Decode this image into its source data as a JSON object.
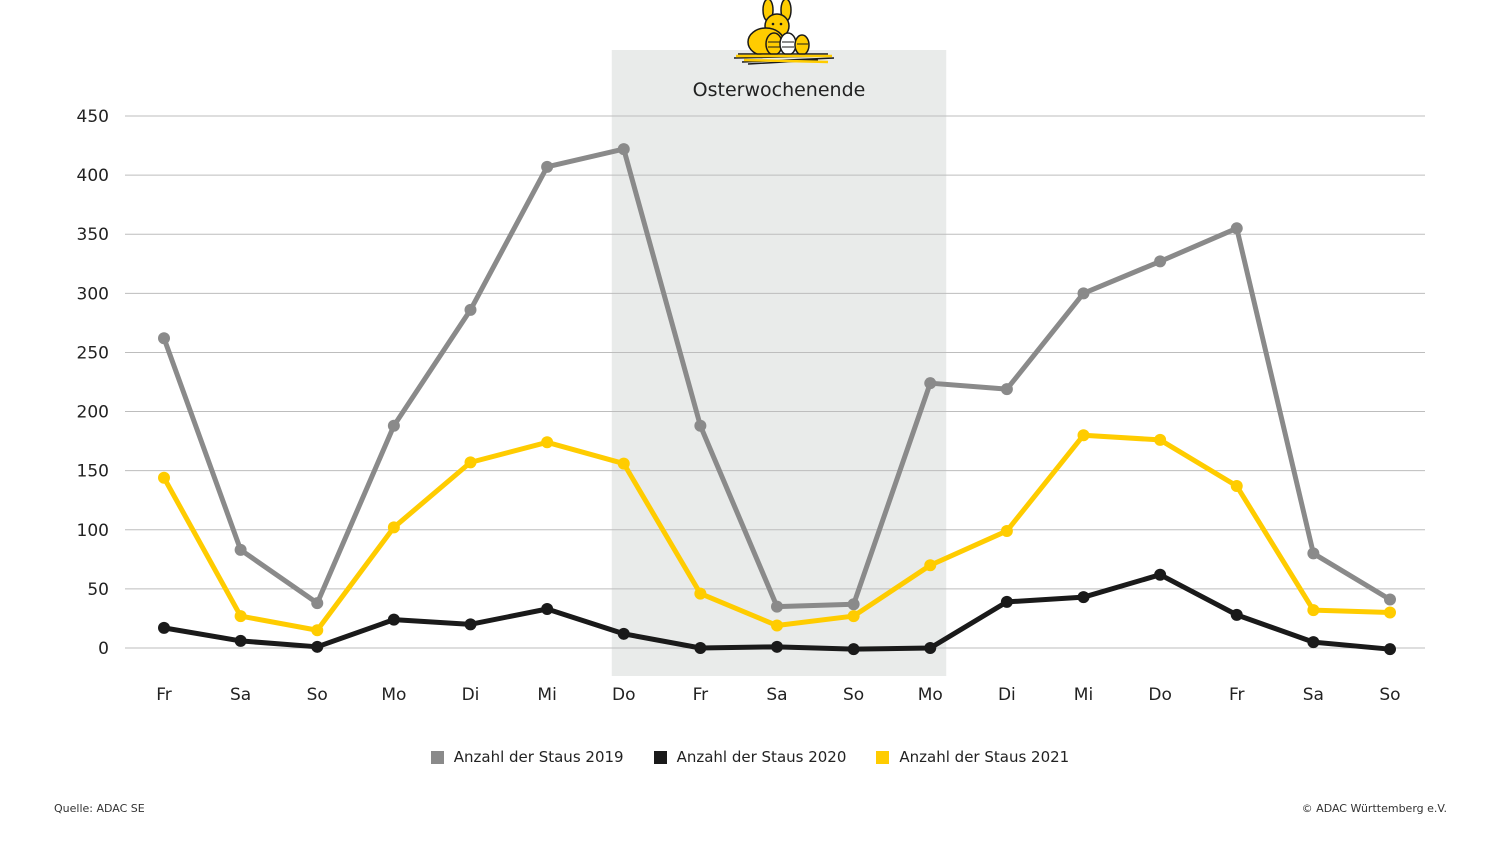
{
  "colors": {
    "series_2019": "#8a8a8a",
    "series_2020": "#1a1a1a",
    "series_2021": "#ffcc00",
    "band": "#e9ebea",
    "grid": "#bdbdbd",
    "bunny": "#ffcc00"
  },
  "band": {
    "label": "Osterwochenende",
    "from_index": 6,
    "to_index": 10,
    "icon": "easter-bunny-icon"
  },
  "footer": {
    "source": "Quelle: ADAC SE",
    "copyright": "© ADAC Württemberg e.V."
  },
  "chart_data": {
    "type": "line",
    "categories": [
      "Fr",
      "Sa",
      "So",
      "Mo",
      "Di",
      "Mi",
      "Do",
      "Fr",
      "Sa",
      "So",
      "Mo",
      "Di",
      "Mi",
      "Do",
      "Fr",
      "Sa",
      "So"
    ],
    "yticks": [
      0,
      50,
      100,
      150,
      200,
      250,
      300,
      350,
      400,
      450
    ],
    "ylim": [
      0,
      450
    ],
    "grid": true,
    "legend_position": "bottom",
    "title": "",
    "xlabel": "",
    "ylabel": "",
    "series": [
      {
        "name": "Anzahl der Staus 2019",
        "color": "#8a8a8a",
        "values": [
          262,
          83,
          38,
          188,
          286,
          407,
          422,
          188,
          35,
          37,
          224,
          219,
          300,
          327,
          355,
          80,
          41
        ]
      },
      {
        "name": "Anzahl der Staus 2020",
        "color": "#1a1a1a",
        "values": [
          17,
          6,
          1,
          24,
          20,
          33,
          12,
          0,
          1,
          -1,
          0,
          39,
          43,
          62,
          28,
          5,
          -1
        ]
      },
      {
        "name": "Anzahl der Staus 2021",
        "color": "#ffcc00",
        "values": [
          144,
          27,
          15,
          102,
          157,
          174,
          156,
          46,
          19,
          27,
          70,
          99,
          180,
          176,
          137,
          32,
          30
        ]
      }
    ]
  }
}
